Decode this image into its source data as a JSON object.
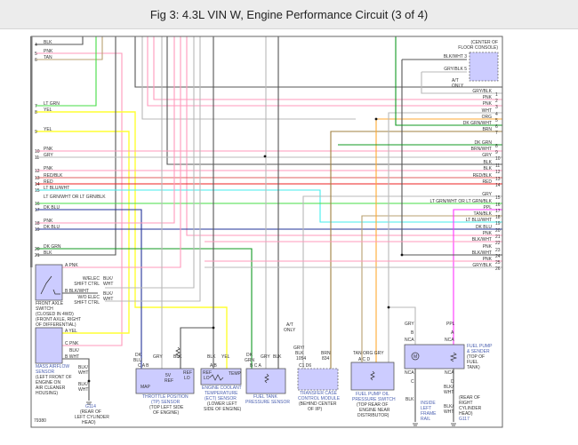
{
  "title": "Fig 3: 4.3L VIN W, Engine Performance Circuit (3 of 4)",
  "figure_id": "79380",
  "left_connector": [
    {
      "num": "4",
      "wire": "BLK"
    },
    {
      "num": "5",
      "wire": "PNK"
    },
    {
      "num": "6",
      "wire": "TAN"
    },
    {
      "num": "7",
      "wire": "LT GRN"
    },
    {
      "num": "8",
      "wire": "YEL"
    },
    {
      "num": "9",
      "wire": "YEL"
    },
    {
      "num": "10",
      "wire": "PNK"
    },
    {
      "num": "11",
      "wire": "GRY"
    },
    {
      "num": "12",
      "wire": "PNK"
    },
    {
      "num": "13",
      "wire": "RED/BLK"
    },
    {
      "num": "14",
      "wire": "RED"
    },
    {
      "num": "15",
      "wire": "LT BLU/WHT"
    },
    {
      "num": "16",
      "wire": "LT GRN/WHT OR LT GRN/BLK"
    },
    {
      "num": "17",
      "wire": "DK BLU"
    },
    {
      "num": "18",
      "wire": "PNK"
    },
    {
      "num": "19",
      "wire": "DK BLU"
    },
    {
      "num": "20",
      "wire": "DK GRN"
    },
    {
      "num": "21",
      "wire": "BLK"
    }
  ],
  "right_connector": [
    {
      "num": "1",
      "wire": "GRY/BLK"
    },
    {
      "num": "2",
      "wire": "PNK"
    },
    {
      "num": "3",
      "wire": "PNK"
    },
    {
      "num": "4",
      "wire": "WHT"
    },
    {
      "num": "5",
      "wire": "ORG"
    },
    {
      "num": "6",
      "wire": "DK GRN/WHT"
    },
    {
      "num": "7",
      "wire": "BRN"
    },
    {
      "num": "8",
      "wire": "DK GRN"
    },
    {
      "num": "9",
      "wire": "BRN/WHT"
    },
    {
      "num": "10",
      "wire": "GRY"
    },
    {
      "num": "11",
      "wire": "BLK"
    },
    {
      "num": "12",
      "wire": "BLK"
    },
    {
      "num": "13",
      "wire": "RED/BLK"
    },
    {
      "num": "14",
      "wire": "RED"
    },
    {
      "num": "15",
      "wire": "GRY"
    },
    {
      "num": "16",
      "wire": "LT GRN/WHT  OR  LT GRN/BLK"
    },
    {
      "num": "17",
      "wire": "PPL"
    },
    {
      "num": "18",
      "wire": "TAN/BLK"
    },
    {
      "num": "19",
      "wire": "LT BLU/WHT"
    },
    {
      "num": "20",
      "wire": "DK BLU"
    },
    {
      "num": "21",
      "wire": "PNK"
    },
    {
      "num": "22",
      "wire": "BLK/WHT"
    },
    {
      "num": "23",
      "wire": "PNK"
    },
    {
      "num": "24",
      "wire": "BLK/WHT"
    },
    {
      "num": "25",
      "wire": "PNK"
    },
    {
      "num": "26",
      "wire": "GRY/BLK"
    }
  ],
  "wire_colors": {
    "BLK": "#555555",
    "GRY": "#b8b8b8",
    "PNK": "#ff99bb",
    "TAN": "#b8a070",
    "LT GRN": "#44dd44",
    "YEL": "#ffff33",
    "RED/BLK": "#e06060",
    "RED": "#ee2222",
    "LT BLU": "#44eeee",
    "DK BLU": "#223399",
    "DK GRN": "#119922",
    "ORG": "#ffaa33",
    "BRN": "#a08040",
    "PPL": "#ff33ff"
  },
  "labels": [
    {
      "id": "console-location",
      "text": "(CENTER OF"
    },
    {
      "id": "console-location-2",
      "text": "FLOOR CONSOLE)"
    },
    {
      "id": "console-pin3",
      "text": "BLK/WHT   3"
    },
    {
      "id": "console-pin5",
      "text": "GRY/BLK   5"
    },
    {
      "id": "at-only-1",
      "text": "A/T"
    },
    {
      "id": "at-only-2",
      "text": "ONLY"
    },
    {
      "id": "fa-pinA",
      "text": "A   PNK"
    },
    {
      "id": "fa-pinB",
      "text": "B   BLK/WHT"
    },
    {
      "id": "w-elec-1",
      "text": "W/ELEC"
    },
    {
      "id": "w-elec-2",
      "text": "SHIFT CTRL"
    },
    {
      "id": "wo-elec-1",
      "text": "W/O ELEC"
    },
    {
      "id": "wo-elec-2",
      "text": "SHIFT CTRL"
    },
    {
      "id": "blk-wht-a1",
      "text": "BLK/"
    },
    {
      "id": "blk-wht-a2",
      "text": "WHT"
    },
    {
      "id": "blk-wht-b1",
      "text": "BLK/"
    },
    {
      "id": "blk-wht-b2",
      "text": "WHT"
    },
    {
      "id": "fa-name-1",
      "text": "FRONT AXLE"
    },
    {
      "id": "fa-name-2",
      "text": "SWITCH"
    },
    {
      "id": "fa-name-3",
      "text": "(CLOSED IN 4WD)"
    },
    {
      "id": "fa-name-4",
      "text": "(FRONT AXLE, RIGHT"
    },
    {
      "id": "fa-name-5",
      "text": "OF DIFFERENTIAL)"
    },
    {
      "id": "maf-pinA",
      "text": "A   YEL"
    },
    {
      "id": "maf-pinC",
      "text": "C   PNK"
    },
    {
      "id": "maf-pinB",
      "text": "B   WHT"
    },
    {
      "id": "maf-blk",
      "text": "BLK/"
    },
    {
      "id": "maf-name-1",
      "text": "MASS AIRFLOW"
    },
    {
      "id": "maf-name-2",
      "text": "SENSOR"
    },
    {
      "id": "maf-name-3",
      "text": "(LEFT FRONT OF"
    },
    {
      "id": "maf-name-4",
      "text": "ENGINE ON"
    },
    {
      "id": "maf-name-5",
      "text": "AIR CLEANER"
    },
    {
      "id": "maf-name-6",
      "text": "HOUSING)"
    },
    {
      "id": "g114-w1",
      "text": "BLK/"
    },
    {
      "id": "g114-w2",
      "text": "WHT"
    },
    {
      "id": "g114-w3",
      "text": "BLK/"
    },
    {
      "id": "g114-w4",
      "text": "WHT"
    },
    {
      "id": "g114",
      "text": "G114"
    },
    {
      "id": "g114-loc-1",
      "text": "(REAR OF"
    },
    {
      "id": "g114-loc-2",
      "text": "LEFT CYLINDER"
    },
    {
      "id": "g114-loc-3",
      "text": "HEAD)"
    },
    {
      "id": "tp-w1",
      "text": "DK"
    },
    {
      "id": "tp-w1b",
      "text": "BLU"
    },
    {
      "id": "tp-w2",
      "text": "GRY"
    },
    {
      "id": "tp-w3",
      "text": "BLK"
    },
    {
      "id": "tp-pins",
      "text": "C           A           B"
    },
    {
      "id": "tp-5v",
      "text": "5V"
    },
    {
      "id": "tp-ref",
      "text": "REF"
    },
    {
      "id": "tp-ref2",
      "text": "REF"
    },
    {
      "id": "tp-lo",
      "text": "LO"
    },
    {
      "id": "tp-map",
      "text": "MAP"
    },
    {
      "id": "tp-name-1",
      "text": "THROTTLE POSITION"
    },
    {
      "id": "tp-name-2",
      "text": "(TP) SENSOR"
    },
    {
      "id": "tp-name-3",
      "text": "(TOP LEFT SIDE"
    },
    {
      "id": "tp-name-4",
      "text": "OF ENGINE)"
    },
    {
      "id": "ect-w1",
      "text": "BLK"
    },
    {
      "id": "ect-w2",
      "text": "YEL"
    },
    {
      "id": "ect-pins",
      "text": "A         B"
    },
    {
      "id": "ect-ref",
      "text": "REF"
    },
    {
      "id": "ect-lo",
      "text": "LO"
    },
    {
      "id": "ect-temp",
      "text": "TEMP"
    },
    {
      "id": "ect-name-1",
      "text": "ENGINE COOLANT"
    },
    {
      "id": "ect-name-2",
      "text": "TEMPERATURE"
    },
    {
      "id": "ect-name-3",
      "text": "(ECT) SENSOR"
    },
    {
      "id": "ect-name-4",
      "text": "(LOWER LEFT"
    },
    {
      "id": "ect-name-5",
      "text": "SIDE OF ENGINE)"
    },
    {
      "id": "ftp-w1",
      "text": "DK"
    },
    {
      "id": "ftp-w1b",
      "text": "GRN"
    },
    {
      "id": "ftp-w2",
      "text": "GRY"
    },
    {
      "id": "ftp-w3",
      "text": "BLK"
    },
    {
      "id": "ftp-pins",
      "text": "B       C       A"
    },
    {
      "id": "ftp-name-1",
      "text": "FUEL TANK"
    },
    {
      "id": "ftp-name-2",
      "text": "PRESSURE SENSOR"
    },
    {
      "id": "tc-at-1",
      "text": "A/T"
    },
    {
      "id": "tc-at-2",
      "text": "ONLY"
    },
    {
      "id": "tc-w1",
      "text": "GRY/"
    },
    {
      "id": "tc-w1b",
      "text": "BLK"
    },
    {
      "id": "tc-c1",
      "text": "1054"
    },
    {
      "id": "tc-w2",
      "text": "BRN"
    },
    {
      "id": "tc-c2",
      "text": "834"
    },
    {
      "id": "tc-pins",
      "text": "C1                D6"
    },
    {
      "id": "tc-name-1",
      "text": "TRANSFER CASE"
    },
    {
      "id": "tc-name-2",
      "text": "CONTROL MODULE"
    },
    {
      "id": "tc-name-3",
      "text": "(BEHIND CENTER"
    },
    {
      "id": "tc-name-4",
      "text": "OF I/P)"
    },
    {
      "id": "fpo-w",
      "text": "TAN  ORG  GRY"
    },
    {
      "id": "fpo-pins",
      "text": "A        C        D"
    },
    {
      "id": "fpo-name-1",
      "text": "FUEL PUMP OIL"
    },
    {
      "id": "fpo-name-2",
      "text": "PRESSURE SWITCH"
    },
    {
      "id": "fpo-name-3",
      "text": "(TOP REAR OF"
    },
    {
      "id": "fpo-name-4",
      "text": "ENGINE NEAR"
    },
    {
      "id": "fpo-name-5",
      "text": "DISTRIBUTOR)"
    },
    {
      "id": "fp-w1",
      "text": "GRY"
    },
    {
      "id": "fp-w2",
      "text": "PPL"
    },
    {
      "id": "fp-b",
      "text": "B"
    },
    {
      "id": "fp-a",
      "text": "A"
    },
    {
      "id": "fp-nca1",
      "text": "NCA"
    },
    {
      "id": "fp-nca2",
      "text": "NCA"
    },
    {
      "id": "fp-nca3",
      "text": "NCA"
    },
    {
      "id": "fp-nca4",
      "text": "NCA"
    },
    {
      "id": "fp-c",
      "text": "C"
    },
    {
      "id": "fp-d",
      "text": "D"
    },
    {
      "id": "fp-m",
      "text": "M"
    },
    {
      "id": "fp-name-1",
      "text": "FUEL PUMP"
    },
    {
      "id": "fp-name-2",
      "text": "& SENDER"
    },
    {
      "id": "fp-name-3",
      "text": "(TOP OF"
    },
    {
      "id": "fp-name-4",
      "text": "FUEL"
    },
    {
      "id": "fp-name-5",
      "text": "TANK)"
    },
    {
      "id": "fp-blk",
      "text": "BLK"
    },
    {
      "id": "fp-bw1",
      "text": "BLK/"
    },
    {
      "id": "fp-bw2",
      "text": "WHT"
    },
    {
      "id": "fp-bw3",
      "text": "BLK/"
    },
    {
      "id": "fp-bw4",
      "text": "WHT"
    },
    {
      "id": "frame-1",
      "text": "INSIDE"
    },
    {
      "id": "frame-2",
      "text": "LEFT"
    },
    {
      "id": "frame-3",
      "text": "FRAME"
    },
    {
      "id": "frame-4",
      "text": "RAIL"
    },
    {
      "id": "g117-1",
      "text": "(REAR OF"
    },
    {
      "id": "g117-2",
      "text": "RIGHT"
    },
    {
      "id": "g117-3",
      "text": "CYLINDER"
    },
    {
      "id": "g117-4",
      "text": "HEAD)"
    },
    {
      "id": "g117",
      "text": "G117"
    }
  ]
}
